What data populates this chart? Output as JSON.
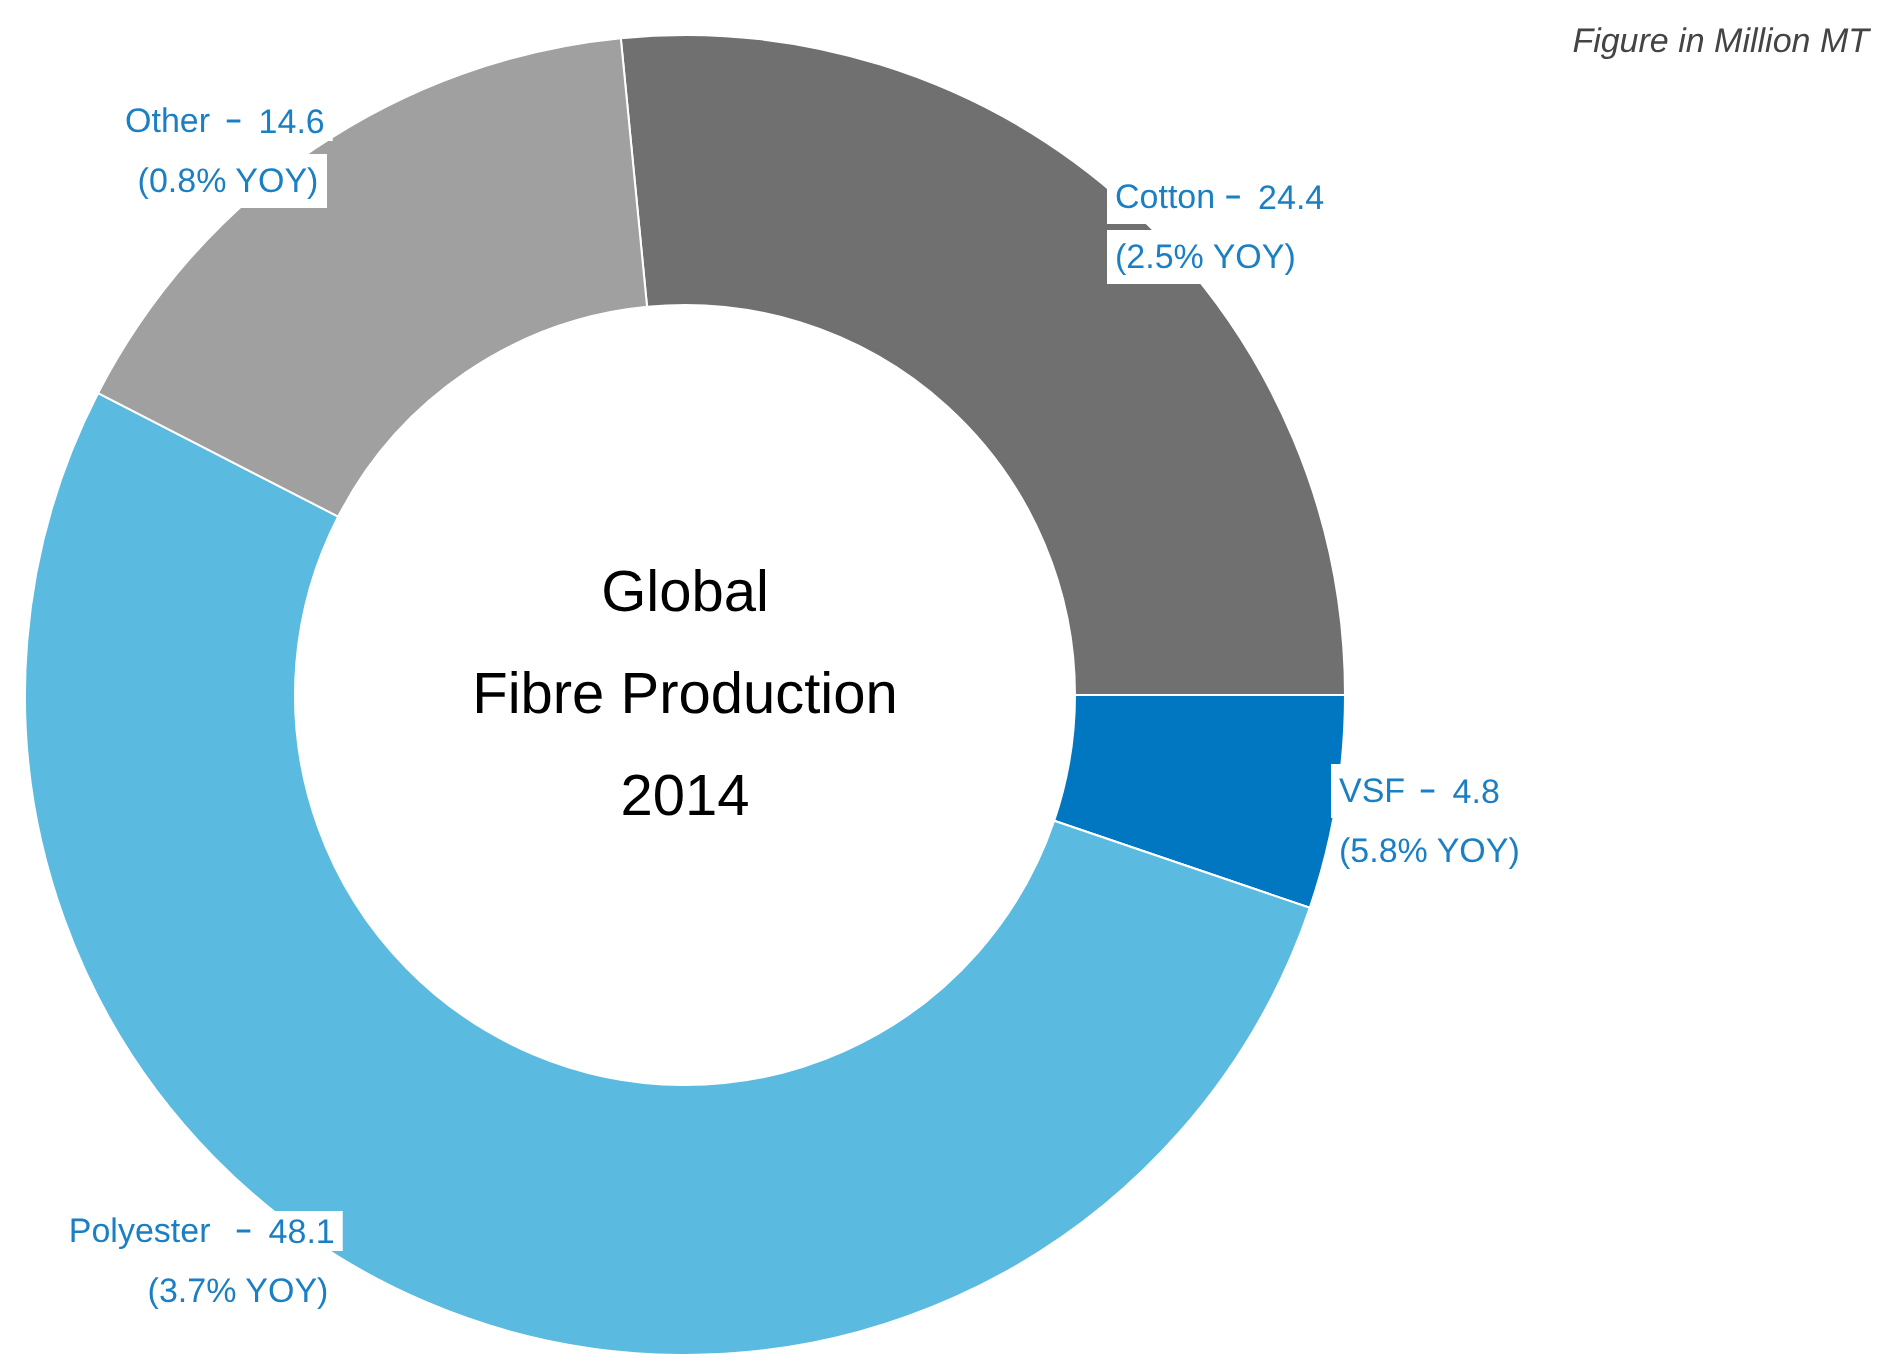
{
  "chart_data": {
    "type": "donut",
    "title": "Global\nFibre Production\n2014",
    "categories": [
      "Cotton",
      "VSF",
      "Polyester",
      "Other"
    ],
    "values": [
      24.4,
      4.8,
      48.1,
      14.6
    ],
    "colors": [
      "#707070",
      "#0077c0",
      "#5bbae0",
      "#a0a0a0"
    ],
    "data_labels": true,
    "annotations": [
      "Figure in Million MT",
      "(2.5% YOY)",
      "(5.8% YOY)",
      "(3.7% YOY)",
      "(0.8% YOY)"
    ]
  }
}
